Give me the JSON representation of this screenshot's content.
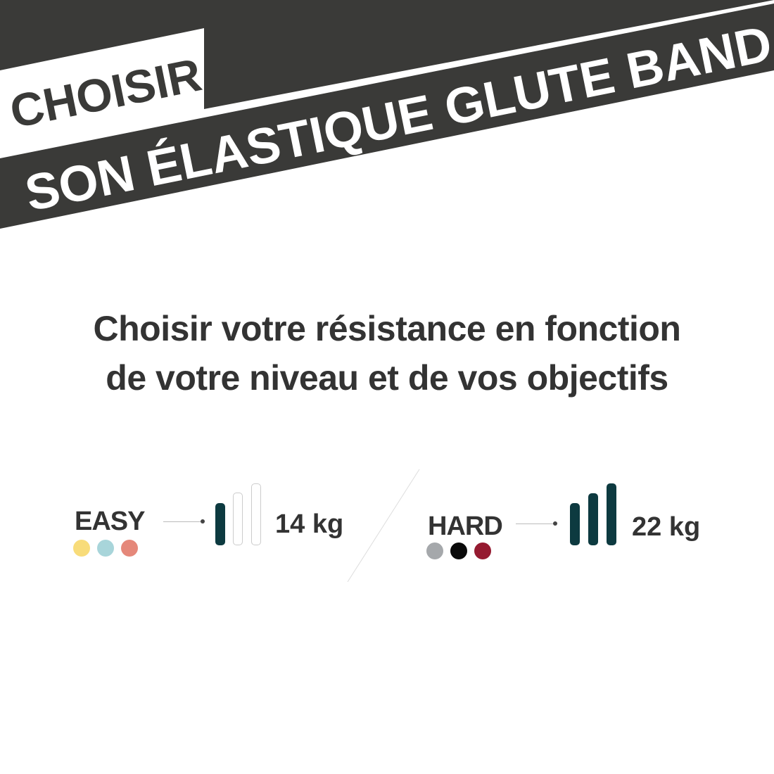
{
  "banner": {
    "line1": "CHOISIR",
    "line2": "SON ÉLASTIQUE GLUTE BAND",
    "color": "#3a3a38"
  },
  "headline": {
    "line1": "Choisir votre résistance en fonction",
    "line2": "de votre niveau et de vos objectifs"
  },
  "levels": [
    {
      "label": "EASY",
      "weight": "14 kg",
      "filled_bars": 1,
      "total_bars": 3,
      "colors": [
        "#f8dc7a",
        "#a8d5da",
        "#e5887a"
      ]
    },
    {
      "label": "HARD",
      "weight": "22 kg",
      "filled_bars": 3,
      "total_bars": 3,
      "colors": [
        "#a5a8ab",
        "#0a0a0a",
        "#951a30"
      ]
    }
  ],
  "bar_color": "#0d3a40"
}
